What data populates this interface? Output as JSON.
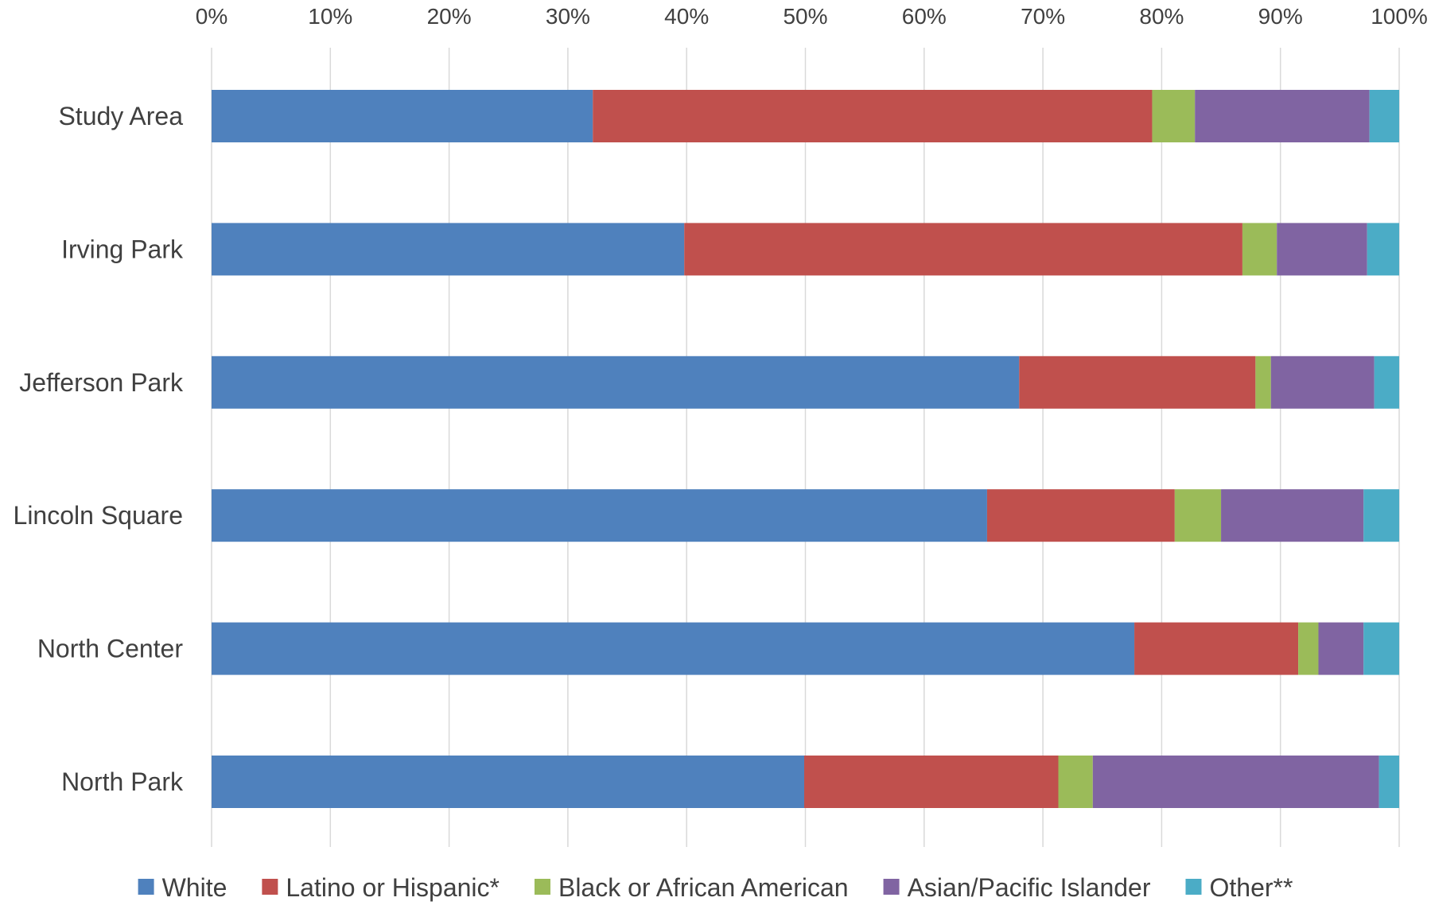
{
  "chart_data": {
    "type": "bar",
    "orientation": "horizontal",
    "stacked": "percent",
    "categories": [
      "Study Area",
      "Irving Park",
      "Jefferson Park",
      "Lincoln Square",
      "North Center",
      "North Park"
    ],
    "series": [
      {
        "name": "White",
        "color": "#4F81BD",
        "values": [
          32.1,
          39.8,
          68.0,
          65.3,
          77.7,
          49.9
        ]
      },
      {
        "name": "Latino or Hispanic*",
        "color": "#C0504D",
        "values": [
          47.1,
          47.0,
          19.9,
          15.8,
          13.8,
          21.4
        ]
      },
      {
        "name": "Black or African American",
        "color": "#9BBB59",
        "values": [
          3.6,
          2.9,
          1.3,
          3.9,
          1.7,
          2.9
        ]
      },
      {
        "name": "Asian/Pacific Islander",
        "color": "#8064A2",
        "values": [
          14.7,
          7.6,
          8.7,
          12.0,
          3.8,
          24.1
        ]
      },
      {
        "name": "Other**",
        "color": "#4BACC6",
        "values": [
          2.5,
          2.7,
          2.1,
          3.0,
          3.0,
          1.7
        ]
      }
    ],
    "xlim": [
      0,
      100
    ],
    "x_ticks": [
      "0%",
      "10%",
      "20%",
      "30%",
      "40%",
      "50%",
      "60%",
      "70%",
      "80%",
      "90%",
      "100%"
    ],
    "x_axis_position": "top",
    "grid": true,
    "legend_position": "bottom",
    "title": "",
    "xlabel": "",
    "ylabel": ""
  }
}
